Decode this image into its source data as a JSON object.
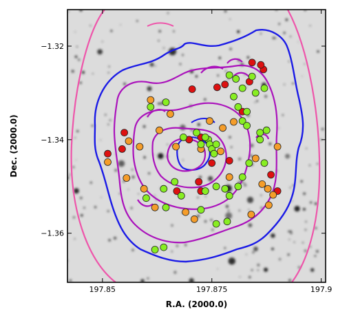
{
  "chart_data": {
    "type": "scatter",
    "title": "",
    "xlabel": "R.A. (2000.0)",
    "ylabel": "Dec. (2000.0)",
    "x_ticks": [
      {
        "value": 197.85,
        "label": "197.85"
      },
      {
        "value": 197.875,
        "label": "197.875"
      },
      {
        "value": 197.9,
        "label": "197.9"
      }
    ],
    "y_ticks": [
      {
        "value": -1.32,
        "label": "−1.32"
      },
      {
        "value": -1.34,
        "label": "−1.34"
      },
      {
        "value": -1.36,
        "label": "−1.36"
      }
    ],
    "xlim": [
      197.842,
      197.901
    ],
    "ylim": [
      -1.3705,
      -1.3122
    ],
    "background": "greyscale sky image with dark point sources",
    "contours": [
      {
        "color": "#ee55aa",
        "level": "outermost"
      },
      {
        "color": "#1a1ae6",
        "level": "outer"
      },
      {
        "color": "#aa11bb",
        "level": "inner (several)"
      }
    ],
    "colors": {
      "red": "#dd1111",
      "orange": "#f59d2a",
      "green": "#88ee22",
      "marker_edge": "#222222"
    },
    "series": [
      {
        "color": "red",
        "points": [
          [
            197.8842,
            -1.3235
          ],
          [
            197.8868,
            -1.325
          ],
          [
            197.8862,
            -1.324
          ],
          [
            197.8836,
            -1.3276
          ],
          [
            197.878,
            -1.3282
          ],
          [
            197.8762,
            -1.3288
          ],
          [
            197.8705,
            -1.3292
          ],
          [
            197.882,
            -1.334
          ],
          [
            197.8885,
            -1.3475
          ],
          [
            197.89,
            -1.351
          ],
          [
            197.855,
            -1.3385
          ],
          [
            197.8545,
            -1.342
          ],
          [
            197.8512,
            -1.343
          ],
          [
            197.8698,
            -1.34
          ],
          [
            197.8725,
            -1.3395
          ],
          [
            197.875,
            -1.345
          ],
          [
            197.879,
            -1.3445
          ],
          [
            197.872,
            -1.349
          ],
          [
            197.867,
            -1.351
          ],
          [
            197.8725,
            -1.351
          ]
        ]
      },
      {
        "color": "orange",
        "points": [
          [
            197.861,
            -1.3315
          ],
          [
            197.8655,
            -1.3345
          ],
          [
            197.863,
            -1.338
          ],
          [
            197.856,
            -1.3403
          ],
          [
            197.8585,
            -1.3415
          ],
          [
            197.8512,
            -1.3448
          ],
          [
            197.8555,
            -1.3482
          ],
          [
            197.8595,
            -1.3505
          ],
          [
            197.862,
            -1.3545
          ],
          [
            197.869,
            -1.3555
          ],
          [
            197.871,
            -1.357
          ],
          [
            197.8745,
            -1.336
          ],
          [
            197.88,
            -1.3362
          ],
          [
            197.8775,
            -1.3375
          ],
          [
            197.8668,
            -1.3415
          ],
          [
            197.8725,
            -1.342
          ],
          [
            197.877,
            -1.3425
          ],
          [
            197.885,
            -1.344
          ],
          [
            197.8865,
            -1.3495
          ],
          [
            197.8878,
            -1.3505
          ],
          [
            197.889,
            -1.3518
          ],
          [
            197.888,
            -1.354
          ],
          [
            197.89,
            -1.3415
          ],
          [
            197.879,
            -1.348
          ],
          [
            197.884,
            -1.356
          ]
        ]
      },
      {
        "color": "green",
        "points": [
          [
            197.879,
            -1.3262
          ],
          [
            197.8805,
            -1.327
          ],
          [
            197.8842,
            -1.3265
          ],
          [
            197.887,
            -1.329
          ],
          [
            197.882,
            -1.329
          ],
          [
            197.88,
            -1.3308
          ],
          [
            197.885,
            -1.33
          ],
          [
            197.861,
            -1.333
          ],
          [
            197.8645,
            -1.332
          ],
          [
            197.8685,
            -1.3395
          ],
          [
            197.8715,
            -1.3385
          ],
          [
            197.8742,
            -1.34
          ],
          [
            197.8725,
            -1.341
          ],
          [
            197.8745,
            -1.341
          ],
          [
            197.875,
            -1.342
          ],
          [
            197.8755,
            -1.343
          ],
          [
            197.876,
            -1.341
          ],
          [
            197.8735,
            -1.3395
          ],
          [
            197.886,
            -1.3385
          ],
          [
            197.8875,
            -1.338
          ],
          [
            197.886,
            -1.34
          ],
          [
            197.881,
            -1.333
          ],
          [
            197.883,
            -1.334
          ],
          [
            197.882,
            -1.336
          ],
          [
            197.883,
            -1.337
          ],
          [
            197.8665,
            -1.349
          ],
          [
            197.864,
            -1.3505
          ],
          [
            197.8735,
            -1.351
          ],
          [
            197.876,
            -1.35
          ],
          [
            197.878,
            -1.3505
          ],
          [
            197.879,
            -1.352
          ],
          [
            197.881,
            -1.35
          ],
          [
            197.8785,
            -1.3575
          ],
          [
            197.876,
            -1.358
          ],
          [
            197.8725,
            -1.355
          ],
          [
            197.868,
            -1.352
          ],
          [
            197.8645,
            -1.3545
          ],
          [
            197.86,
            -1.3525
          ],
          [
            197.862,
            -1.3635
          ],
          [
            197.864,
            -1.363
          ],
          [
            197.882,
            -1.348
          ],
          [
            197.8835,
            -1.345
          ],
          [
            197.887,
            -1.345
          ]
        ]
      }
    ]
  }
}
